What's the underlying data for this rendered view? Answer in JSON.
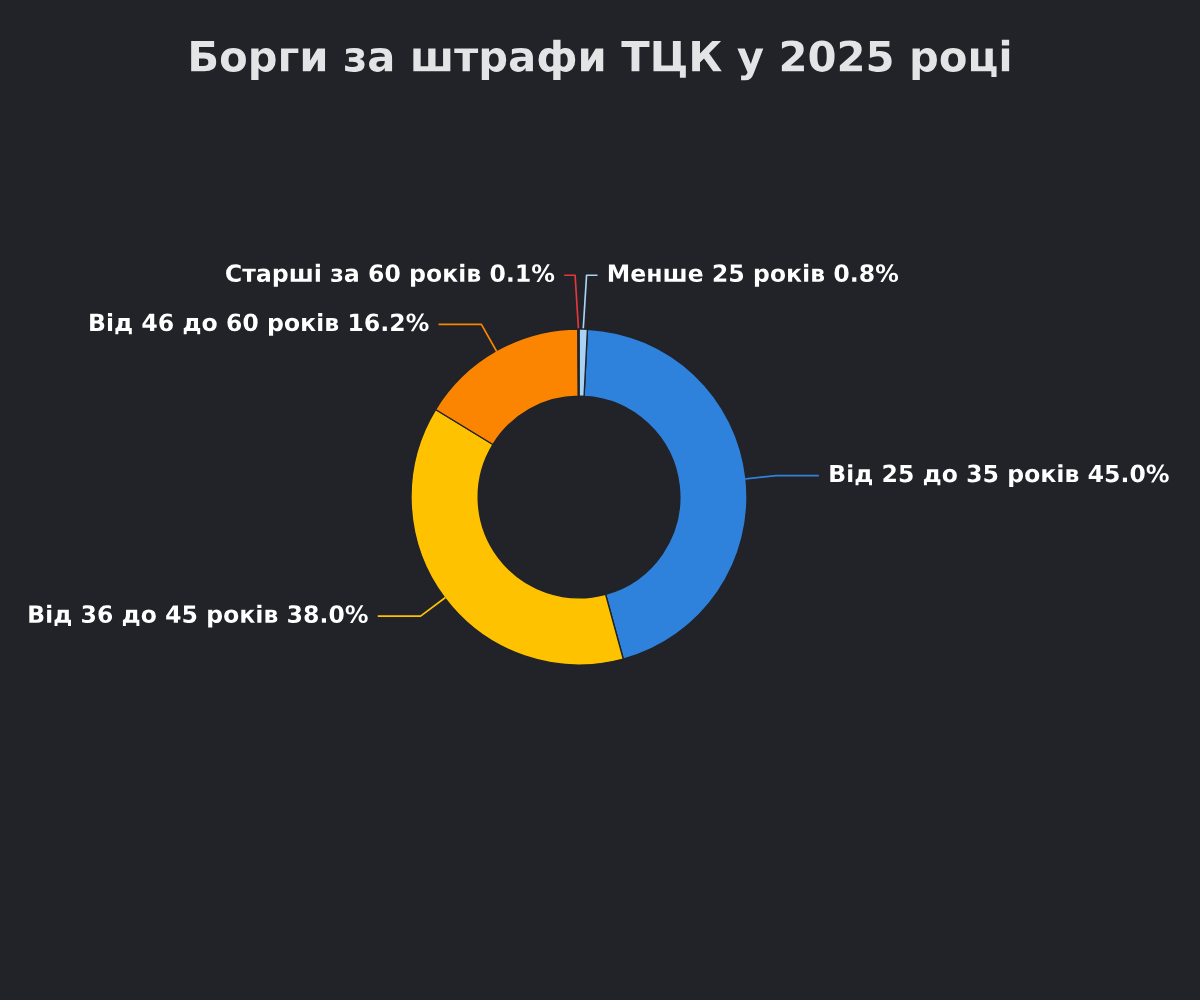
{
  "chart_data": {
    "type": "donut",
    "title": "Борги за штрафи ТЦК у 2025 році",
    "categories": [
      "Менше 25 років",
      "Від 25 до 35 років",
      "Від 36 до 45 років",
      "Від 46 до 60 років",
      "Старші за 60 років"
    ],
    "values": [
      0.8,
      45.0,
      38.0,
      16.2,
      0.1
    ],
    "value_labels": [
      "0.8%",
      "45.0%",
      "38.0%",
      "16.2%",
      "0.1%"
    ],
    "colors": [
      "#a9d3f5",
      "#2e82dc",
      "#ffc200",
      "#fb8500",
      "#e5383b"
    ],
    "legend": false
  }
}
